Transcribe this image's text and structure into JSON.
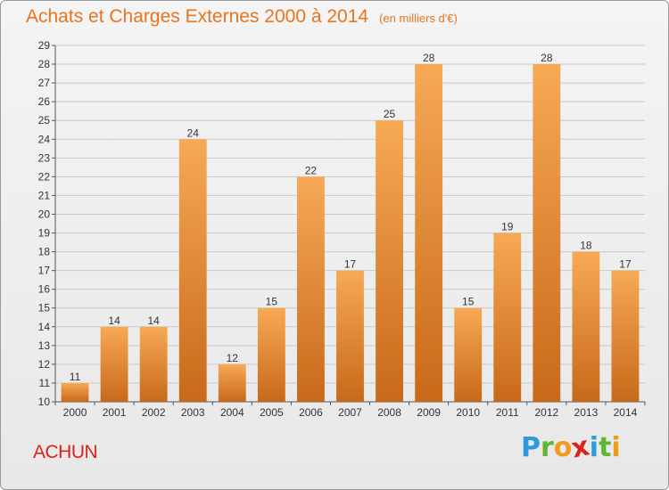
{
  "chart_data": {
    "type": "bar",
    "title": "Achats et Charges Externes 2000 à 2014",
    "subtitle": "(en milliers d'€)",
    "categories": [
      "2000",
      "2001",
      "2002",
      "2003",
      "2004",
      "2005",
      "2006",
      "2007",
      "2008",
      "2009",
      "2010",
      "2011",
      "2012",
      "2013",
      "2014"
    ],
    "values": [
      11,
      14,
      14,
      24,
      12,
      15,
      22,
      17,
      25,
      28,
      15,
      19,
      28,
      18,
      17
    ],
    "xlabel": "",
    "ylabel": "",
    "ylim": [
      10,
      29
    ],
    "yticks": [
      10,
      11,
      12,
      13,
      14,
      15,
      16,
      17,
      18,
      19,
      20,
      21,
      22,
      23,
      24,
      25,
      26,
      27,
      28,
      29
    ],
    "grid": true,
    "bar_color_top": "#f7a955",
    "bar_color_bottom": "#c8691a",
    "data_labels": true
  },
  "place_name": "ACHUN",
  "brand": {
    "letters": [
      "P",
      "r",
      "o",
      "x",
      "i",
      "t",
      "i"
    ],
    "colors": [
      "#2e9ad8",
      "#5fb535",
      "#f29a1c",
      "#d9241b",
      "#2e9ad8",
      "#5fb535",
      "#f29a1c"
    ]
  },
  "colors": {
    "title": "#e8741e",
    "place_name": "#d9241b",
    "grid": "#c9c9c9",
    "axis": "#555555"
  }
}
